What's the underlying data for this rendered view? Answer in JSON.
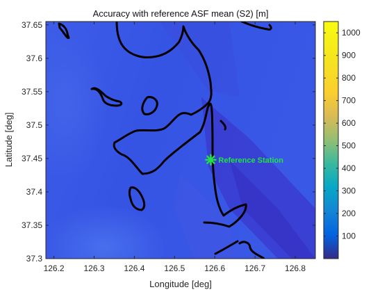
{
  "chart_data": {
    "type": "heatmap",
    "title": "Accuracy with reference ASF mean (S2) [m]",
    "xlabel": "Longitude [deg]",
    "ylabel": "Latitude [deg]",
    "xlim": [
      126.18,
      126.85
    ],
    "ylim": [
      37.3,
      37.655
    ],
    "x_ticks": [
      126.2,
      126.3,
      126.4,
      126.5,
      126.6,
      126.7,
      126.8
    ],
    "x_tick_labels": [
      "126.2",
      "126.3",
      "126.4",
      "126.5",
      "126.6",
      "126.7",
      "126.8"
    ],
    "y_ticks": [
      37.3,
      37.35,
      37.4,
      37.45,
      37.5,
      37.55,
      37.6,
      37.65
    ],
    "y_tick_labels": [
      "37.3",
      "37.35",
      "37.4",
      "37.45",
      "37.5",
      "37.55",
      "37.6",
      "37.65"
    ],
    "colorbar": {
      "colormap": "parula",
      "range": [
        0,
        1050
      ],
      "ticks": [
        100,
        200,
        300,
        400,
        500,
        600,
        700,
        800,
        900,
        1000
      ],
      "tick_labels": [
        "100",
        "200",
        "300",
        "400",
        "500",
        "600",
        "700",
        "800",
        "900",
        "1000"
      ]
    },
    "field": {
      "typical_value_m": 200,
      "range_shown_m": [
        60,
        250
      ],
      "low_region": "east, diagonal band (~60-90 m)",
      "high_region": "west and south-west (~200-250 m)"
    },
    "coastline_color": "#000000",
    "reference_station": {
      "label": "Reference Station",
      "lon": 126.59,
      "lat": 37.448,
      "marker_color": "#22e04a"
    },
    "grid": false
  }
}
